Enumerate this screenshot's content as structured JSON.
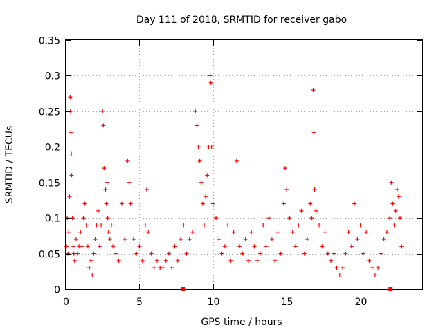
{
  "chart_data": {
    "type": "scatter",
    "title": "Day 111 of 2018, SRMTID for receiver gabo",
    "xlabel": "GPS time / hours",
    "ylabel": "SRMTID / TECUs",
    "xlim": [
      0,
      24.2
    ],
    "ylim": [
      0,
      0.35
    ],
    "xticks": [
      0,
      5,
      10,
      15,
      20
    ],
    "xtick_labels": [
      "0",
      "5",
      "10",
      "15",
      "20"
    ],
    "yticks": [
      0,
      0.05,
      0.1,
      0.15,
      0.2,
      0.25,
      0.3,
      0.35
    ],
    "ytick_labels": [
      "0",
      "0.05",
      "0.1",
      "0.15",
      "0.2",
      "0.25",
      "0.3",
      "0.35"
    ],
    "grid": true,
    "marker": "plus",
    "color": "#ff0000",
    "gap_markers_x": [
      7.95,
      22.05
    ],
    "series": [
      {
        "name": "SRMTID",
        "x": [
          0.05,
          0.1,
          0.15,
          0.2,
          0.25,
          0.3,
          0.32,
          0.35,
          0.38,
          0.4,
          0.45,
          0.5,
          0.55,
          0.6,
          0.7,
          0.8,
          0.9,
          1.0,
          1.1,
          1.2,
          1.3,
          1.4,
          1.5,
          1.6,
          1.7,
          1.8,
          1.9,
          2.0,
          2.1,
          2.2,
          2.3,
          2.4,
          2.5,
          2.55,
          2.6,
          2.7,
          2.75,
          2.8,
          2.85,
          2.9,
          3.0,
          3.1,
          3.2,
          3.4,
          3.6,
          3.8,
          4.0,
          4.2,
          4.3,
          4.4,
          4.6,
          4.8,
          5.0,
          5.2,
          5.4,
          5.5,
          5.6,
          5.8,
          6.0,
          6.2,
          6.4,
          6.6,
          6.8,
          7.0,
          7.2,
          7.4,
          7.6,
          7.8,
          8.0,
          8.2,
          8.4,
          8.6,
          8.8,
          8.9,
          9.0,
          9.1,
          9.2,
          9.3,
          9.4,
          9.5,
          9.6,
          9.7,
          9.8,
          9.85,
          9.9,
          10.0,
          10.2,
          10.4,
          10.6,
          10.8,
          11.0,
          11.2,
          11.4,
          11.6,
          11.8,
          12.0,
          12.2,
          12.4,
          12.6,
          12.8,
          13.0,
          13.2,
          13.4,
          13.6,
          13.8,
          14.0,
          14.2,
          14.4,
          14.6,
          14.8,
          14.9,
          15.0,
          15.2,
          15.4,
          15.6,
          15.8,
          16.0,
          16.2,
          16.4,
          16.6,
          16.7,
          16.8,
          16.85,
          16.9,
          17.0,
          17.2,
          17.4,
          17.6,
          17.8,
          18.0,
          18.2,
          18.4,
          18.6,
          18.8,
          19.0,
          19.2,
          19.4,
          19.6,
          19.8,
          20.0,
          20.2,
          20.4,
          20.6,
          20.8,
          21.0,
          21.2,
          21.4,
          21.6,
          21.8,
          22.0,
          22.1,
          22.2,
          22.3,
          22.4,
          22.5,
          22.6,
          22.7,
          22.8
        ],
        "y": [
          0.06,
          0.1,
          0.05,
          0.08,
          0.13,
          0.27,
          0.25,
          0.22,
          0.19,
          0.16,
          0.1,
          0.06,
          0.05,
          0.04,
          0.07,
          0.05,
          0.06,
          0.08,
          0.06,
          0.1,
          0.12,
          0.09,
          0.06,
          0.03,
          0.04,
          0.02,
          0.05,
          0.07,
          0.09,
          0.11,
          0.06,
          0.09,
          0.25,
          0.23,
          0.17,
          0.14,
          0.12,
          0.15,
          0.1,
          0.08,
          0.07,
          0.09,
          0.06,
          0.05,
          0.04,
          0.12,
          0.07,
          0.18,
          0.15,
          0.12,
          0.07,
          0.05,
          0.06,
          0.04,
          0.09,
          0.14,
          0.08,
          0.05,
          0.03,
          0.04,
          0.03,
          0.03,
          0.04,
          0.05,
          0.03,
          0.06,
          0.04,
          0.07,
          0.09,
          0.05,
          0.07,
          0.08,
          0.25,
          0.23,
          0.2,
          0.18,
          0.15,
          0.12,
          0.09,
          0.13,
          0.16,
          0.2,
          0.3,
          0.29,
          0.2,
          0.12,
          0.1,
          0.07,
          0.05,
          0.06,
          0.09,
          0.04,
          0.08,
          0.18,
          0.06,
          0.05,
          0.07,
          0.04,
          0.08,
          0.06,
          0.04,
          0.05,
          0.09,
          0.06,
          0.1,
          0.07,
          0.04,
          0.08,
          0.05,
          0.12,
          0.17,
          0.14,
          0.1,
          0.08,
          0.06,
          0.09,
          0.11,
          0.05,
          0.07,
          0.12,
          0.1,
          0.28,
          0.22,
          0.14,
          0.11,
          0.09,
          0.06,
          0.08,
          0.05,
          0.04,
          0.05,
          0.03,
          0.02,
          0.03,
          0.05,
          0.08,
          0.06,
          0.12,
          0.07,
          0.09,
          0.05,
          0.08,
          0.04,
          0.03,
          0.02,
          0.03,
          0.05,
          0.07,
          0.08,
          0.1,
          0.15,
          0.12,
          0.09,
          0.11,
          0.14,
          0.13,
          0.1,
          0.06
        ]
      }
    ]
  }
}
